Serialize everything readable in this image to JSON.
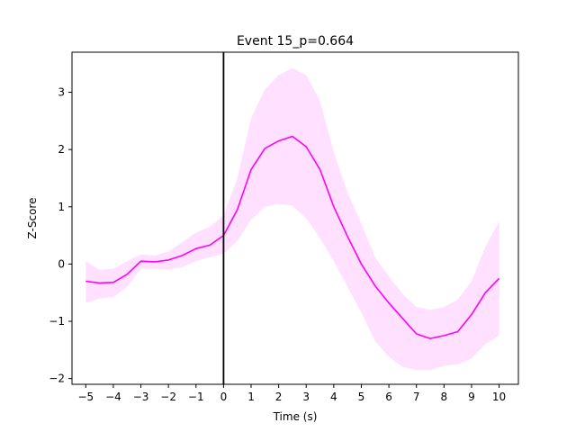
{
  "chart_data": {
    "type": "line",
    "title": "Event 15_p=0.664",
    "xlabel": "Time (s)",
    "ylabel": "Z-Score",
    "xlim": [
      -5.5,
      10.7
    ],
    "ylim": [
      -2.1,
      3.7
    ],
    "xticks": [
      -5,
      -4,
      -3,
      -2,
      -1,
      0,
      1,
      2,
      3,
      4,
      5,
      6,
      7,
      8,
      9,
      10
    ],
    "yticks": [
      -2,
      -1,
      0,
      1,
      2,
      3
    ],
    "grid": false,
    "legend": "none",
    "event_marker_x": 0,
    "colors": {
      "line": "#ff00ff",
      "band": "#ff00ff",
      "band_opacity": 0.12,
      "event_line": "#000000"
    },
    "series": [
      {
        "x": [
          -5,
          -4.5,
          -4,
          -3.5,
          -3,
          -2.5,
          -2,
          -1.5,
          -1,
          -0.5,
          0,
          0.5,
          1,
          1.5,
          2,
          2.5,
          3,
          3.5,
          4,
          4.5,
          5,
          5.5,
          6,
          6.5,
          7,
          7.5,
          8,
          8.5,
          9,
          9.5,
          10
        ],
        "y": [
          -0.3,
          -0.33,
          -0.32,
          -0.18,
          0.05,
          0.04,
          0.07,
          0.15,
          0.27,
          0.33,
          0.5,
          0.95,
          1.65,
          2.02,
          2.15,
          2.23,
          2.05,
          1.65,
          1.0,
          0.48,
          0.0,
          -0.38,
          -0.68,
          -0.95,
          -1.22,
          -1.3,
          -1.25,
          -1.18,
          -0.88,
          -0.5,
          -0.25
        ],
        "upper": [
          0.05,
          -0.1,
          -0.08,
          0.05,
          0.17,
          0.15,
          0.22,
          0.38,
          0.55,
          0.65,
          0.85,
          1.5,
          2.55,
          3.05,
          3.3,
          3.42,
          3.3,
          2.85,
          1.95,
          1.25,
          0.7,
          0.12,
          -0.22,
          -0.52,
          -0.75,
          -0.8,
          -0.75,
          -0.62,
          -0.3,
          0.3,
          0.75
        ],
        "lower": [
          -0.68,
          -0.6,
          -0.58,
          -0.4,
          -0.08,
          -0.08,
          -0.1,
          -0.05,
          0.05,
          0.12,
          0.18,
          0.4,
          0.78,
          1.0,
          1.05,
          1.02,
          0.8,
          0.45,
          0.05,
          -0.4,
          -0.85,
          -1.35,
          -1.62,
          -1.8,
          -1.85,
          -1.85,
          -1.78,
          -1.75,
          -1.65,
          -1.4,
          -1.25
        ]
      }
    ]
  }
}
